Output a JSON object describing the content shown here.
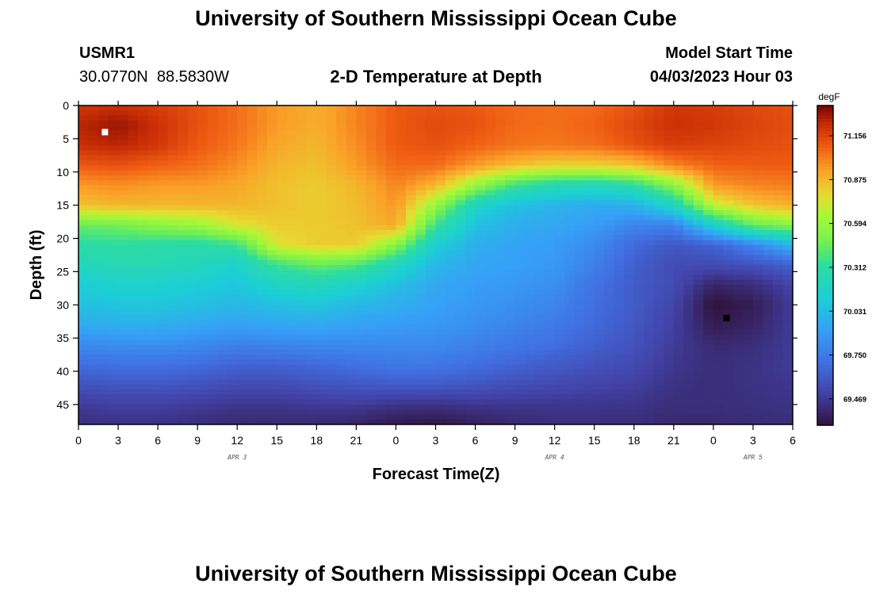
{
  "page": {
    "title_top": "University of Southern Mississippi Ocean Cube",
    "title_bottom": "University of Southern Mississippi Ocean Cube"
  },
  "header": {
    "station_id": "USMR1",
    "coordinates": "30.0770N  88.5830W",
    "plot_title": "2-D Temperature at Depth",
    "model_start_label": "Model Start Time",
    "model_start_value": "04/03/2023 Hour 03"
  },
  "chart_data": {
    "type": "heatmap",
    "title": "2-D Temperature at Depth",
    "xlabel": "Forecast Time(Z)",
    "ylabel": "Depth (ft)",
    "x_range_hours": [
      0,
      54
    ],
    "y_range_ft": [
      0,
      48
    ],
    "x_ticks": [
      {
        "hour": 0,
        "label": "0"
      },
      {
        "hour": 3,
        "label": "3"
      },
      {
        "hour": 6,
        "label": "6"
      },
      {
        "hour": 9,
        "label": "9"
      },
      {
        "hour": 12,
        "label": "12"
      },
      {
        "hour": 15,
        "label": "15"
      },
      {
        "hour": 18,
        "label": "18"
      },
      {
        "hour": 21,
        "label": "21"
      },
      {
        "hour": 24,
        "label": "0"
      },
      {
        "hour": 27,
        "label": "3"
      },
      {
        "hour": 30,
        "label": "6"
      },
      {
        "hour": 33,
        "label": "9"
      },
      {
        "hour": 36,
        "label": "12"
      },
      {
        "hour": 39,
        "label": "15"
      },
      {
        "hour": 42,
        "label": "18"
      },
      {
        "hour": 45,
        "label": "21"
      },
      {
        "hour": 48,
        "label": "0"
      },
      {
        "hour": 51,
        "label": "3"
      },
      {
        "hour": 54,
        "label": "6"
      }
    ],
    "y_ticks": [
      0,
      5,
      10,
      15,
      20,
      25,
      30,
      35,
      40,
      45
    ],
    "date_labels": [
      {
        "hour": 12,
        "label": "APR 3"
      },
      {
        "hour": 36,
        "label": "APR 4"
      },
      {
        "hour": 51,
        "label": "APR 5"
      }
    ],
    "colorbar": {
      "unit": "degF",
      "min": 69.3,
      "max": 71.35,
      "ticks": [
        71.156,
        70.875,
        70.594,
        70.312,
        70.031,
        69.75,
        69.469
      ],
      "tick_labels": [
        "71.156",
        "70.875",
        "70.594",
        "70.312",
        "70.031",
        "69.750",
        "69.469"
      ]
    },
    "markers": [
      {
        "name": "max-marker",
        "hour": 2,
        "depth": 4,
        "color": "#ffffff"
      },
      {
        "name": "min-marker",
        "hour": 49,
        "depth": 32,
        "color": "#000000"
      }
    ],
    "grid": {
      "hours": [
        0,
        3,
        6,
        9,
        12,
        15,
        18,
        21,
        24,
        27,
        30,
        33,
        36,
        39,
        42,
        45,
        48,
        51,
        54
      ],
      "depths": [
        0,
        3,
        6,
        9,
        12,
        15,
        18,
        21,
        24,
        27,
        30,
        33,
        36,
        39,
        42,
        45,
        48
      ],
      "values": [
        [
          71.2,
          71.22,
          71.18,
          71.12,
          71.05,
          70.95,
          70.9,
          71.0,
          71.1,
          71.12,
          71.1,
          71.06,
          71.05,
          71.06,
          71.12,
          71.2,
          71.18,
          71.15,
          71.12
        ],
        [
          71.25,
          71.3,
          71.22,
          71.12,
          71.05,
          70.95,
          70.9,
          71.0,
          71.1,
          71.14,
          71.12,
          71.06,
          71.05,
          71.08,
          71.15,
          71.22,
          71.2,
          71.16,
          71.13
        ],
        [
          71.22,
          71.25,
          71.2,
          71.1,
          71.03,
          70.92,
          70.88,
          70.98,
          71.1,
          71.12,
          71.08,
          71.04,
          71.03,
          71.05,
          71.12,
          71.18,
          71.16,
          71.14,
          71.12
        ],
        [
          71.1,
          71.12,
          71.08,
          71.05,
          70.98,
          70.88,
          70.85,
          70.95,
          71.06,
          71.06,
          70.95,
          70.85,
          70.8,
          70.8,
          70.85,
          71.0,
          71.08,
          71.09,
          71.09
        ],
        [
          70.95,
          70.98,
          70.95,
          70.95,
          70.92,
          70.85,
          70.82,
          70.88,
          71.0,
          70.88,
          70.6,
          70.35,
          70.25,
          70.22,
          70.3,
          70.55,
          70.95,
          71.0,
          71.02
        ],
        [
          70.85,
          70.88,
          70.88,
          70.88,
          70.88,
          70.85,
          70.82,
          70.86,
          70.96,
          70.6,
          70.18,
          70.05,
          70.0,
          69.96,
          69.98,
          70.2,
          70.7,
          70.84,
          70.9
        ],
        [
          70.45,
          70.48,
          70.55,
          70.6,
          70.75,
          70.82,
          70.82,
          70.85,
          70.92,
          70.35,
          70.05,
          69.98,
          69.94,
          69.9,
          69.8,
          69.78,
          70.15,
          70.45,
          70.55
        ],
        [
          70.3,
          70.32,
          70.3,
          70.28,
          70.35,
          70.75,
          70.82,
          70.82,
          70.55,
          70.12,
          69.98,
          69.92,
          69.9,
          69.82,
          69.68,
          69.6,
          69.65,
          69.8,
          70.0
        ],
        [
          70.22,
          70.25,
          70.25,
          70.22,
          70.15,
          70.35,
          70.45,
          70.4,
          70.2,
          70.02,
          69.94,
          69.92,
          69.88,
          69.78,
          69.64,
          69.55,
          69.55,
          69.58,
          69.64
        ],
        [
          70.12,
          70.15,
          70.15,
          70.12,
          70.08,
          70.18,
          70.22,
          70.15,
          70.05,
          69.95,
          69.9,
          69.88,
          69.84,
          69.72,
          69.62,
          69.55,
          69.38,
          69.42,
          69.52
        ],
        [
          70.05,
          70.08,
          70.08,
          70.05,
          70.02,
          70.05,
          70.08,
          70.02,
          69.98,
          69.92,
          69.88,
          69.84,
          69.8,
          69.7,
          69.62,
          69.52,
          69.3,
          69.35,
          69.48
        ],
        [
          69.96,
          69.98,
          69.98,
          69.95,
          69.92,
          69.94,
          69.95,
          69.92,
          69.9,
          69.88,
          69.84,
          69.8,
          69.75,
          69.68,
          69.6,
          69.5,
          69.34,
          69.38,
          69.48
        ],
        [
          69.82,
          69.84,
          69.85,
          69.82,
          69.78,
          69.8,
          69.82,
          69.82,
          69.82,
          69.82,
          69.78,
          69.74,
          69.7,
          69.64,
          69.58,
          69.48,
          69.4,
          69.42,
          69.48
        ],
        [
          69.7,
          69.72,
          69.72,
          69.7,
          69.66,
          69.66,
          69.68,
          69.72,
          69.75,
          69.74,
          69.7,
          69.66,
          69.62,
          69.58,
          69.54,
          69.46,
          69.42,
          69.44,
          69.48
        ],
        [
          69.58,
          69.6,
          69.6,
          69.58,
          69.55,
          69.55,
          69.58,
          69.6,
          69.62,
          69.62,
          69.6,
          69.56,
          69.54,
          69.52,
          69.5,
          69.44,
          69.42,
          69.44,
          69.46
        ],
        [
          69.48,
          69.5,
          69.5,
          69.48,
          69.46,
          69.46,
          69.48,
          69.48,
          69.45,
          69.44,
          69.46,
          69.46,
          69.46,
          69.46,
          69.45,
          69.42,
          69.42,
          69.43,
          69.44
        ],
        [
          69.42,
          69.44,
          69.44,
          69.42,
          69.4,
          69.4,
          69.4,
          69.38,
          69.33,
          69.32,
          69.36,
          69.4,
          69.42,
          69.42,
          69.42,
          69.4,
          69.4,
          69.41,
          69.42
        ]
      ]
    }
  }
}
